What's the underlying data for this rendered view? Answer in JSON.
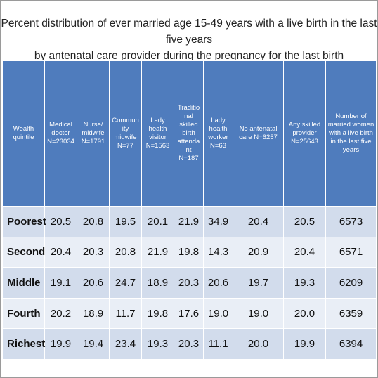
{
  "title_line1": "Percent distribution of ever married age 15-49 years with a live birth in the last five years",
  "title_line2": "by antenatal care provider during the pregnancy for the last birth",
  "headers": [
    "Wealth quintile",
    "Medical doctor N=23034",
    "Nurse/ midwife N=1791",
    "Commun ity midwife N=77",
    "Lady health visitor N=1563",
    "Traditio nal skilled birth attenda nt N=187",
    "Lady health worker N=63",
    "No antenatal care N=6257",
    "Any skilled provider N=25643",
    "Number of married women with a live birth in the last five years"
  ],
  "rows": [
    {
      "label": "Poorest",
      "values": [
        "20.5",
        "20.8",
        "19.5",
        "20.1",
        "21.9",
        "34.9",
        "20.4",
        "20.5",
        "6573"
      ]
    },
    {
      "label": "Second",
      "values": [
        "20.4",
        "20.3",
        "20.8",
        "21.9",
        "19.8",
        "14.3",
        "20.9",
        "20.4",
        "6571"
      ]
    },
    {
      "label": "Middle",
      "values": [
        "19.1",
        "20.6",
        "24.7",
        "18.9",
        "20.3",
        "20.6",
        "19.7",
        "19.3",
        "6209"
      ]
    },
    {
      "label": "Fourth",
      "values": [
        "20.2",
        "18.9",
        "11.7",
        "19.8",
        "17.6",
        "19.0",
        "19.0",
        "20.0",
        "6359"
      ]
    },
    {
      "label": "Richest",
      "values": [
        "19.9",
        "19.4",
        "23.4",
        "19.3",
        "20.3",
        "11.1",
        "20.0",
        "19.9",
        "6394"
      ]
    }
  ],
  "colors": {
    "header_bg": "#4f7cbd",
    "row_dark": "#d2dcec",
    "row_light": "#e9eef6"
  }
}
